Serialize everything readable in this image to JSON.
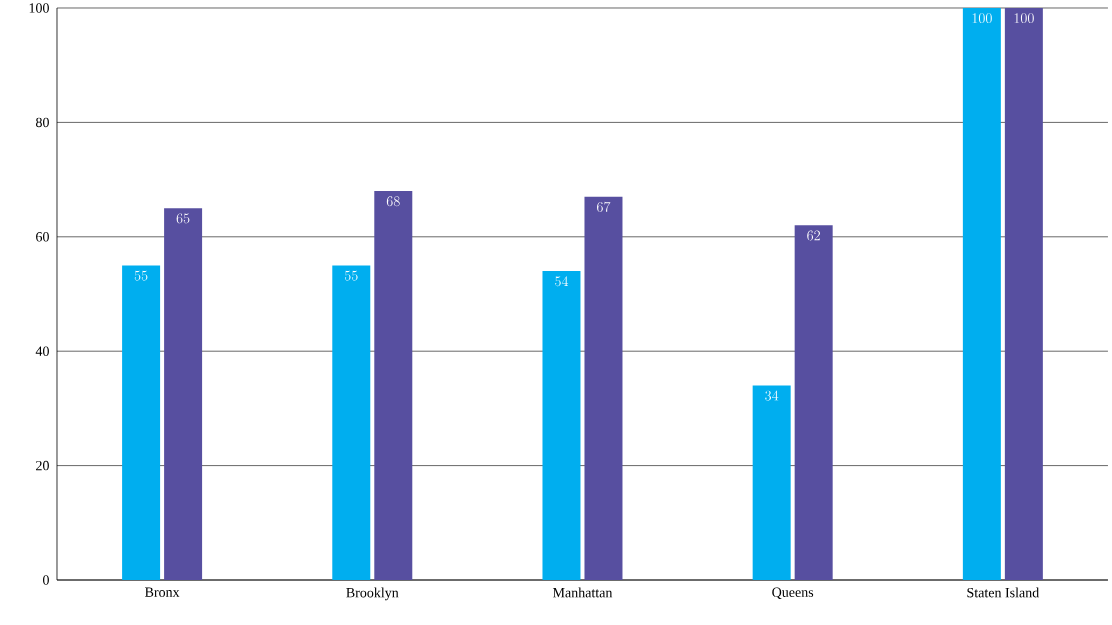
{
  "chart_data": {
    "type": "bar",
    "categories": [
      "Bronx",
      "Brooklyn",
      "Manhattan",
      "Queens",
      "Staten Island"
    ],
    "series": [
      {
        "color": "#00aeef",
        "values": [
          55,
          55,
          54,
          34,
          100
        ]
      },
      {
        "color": "#574fa0",
        "values": [
          65,
          68,
          67,
          62,
          100
        ]
      }
    ],
    "ylim": [
      0,
      100
    ],
    "yticks": [
      0,
      20,
      40,
      60,
      80,
      100
    ],
    "grid": "y",
    "data_labels": true
  }
}
